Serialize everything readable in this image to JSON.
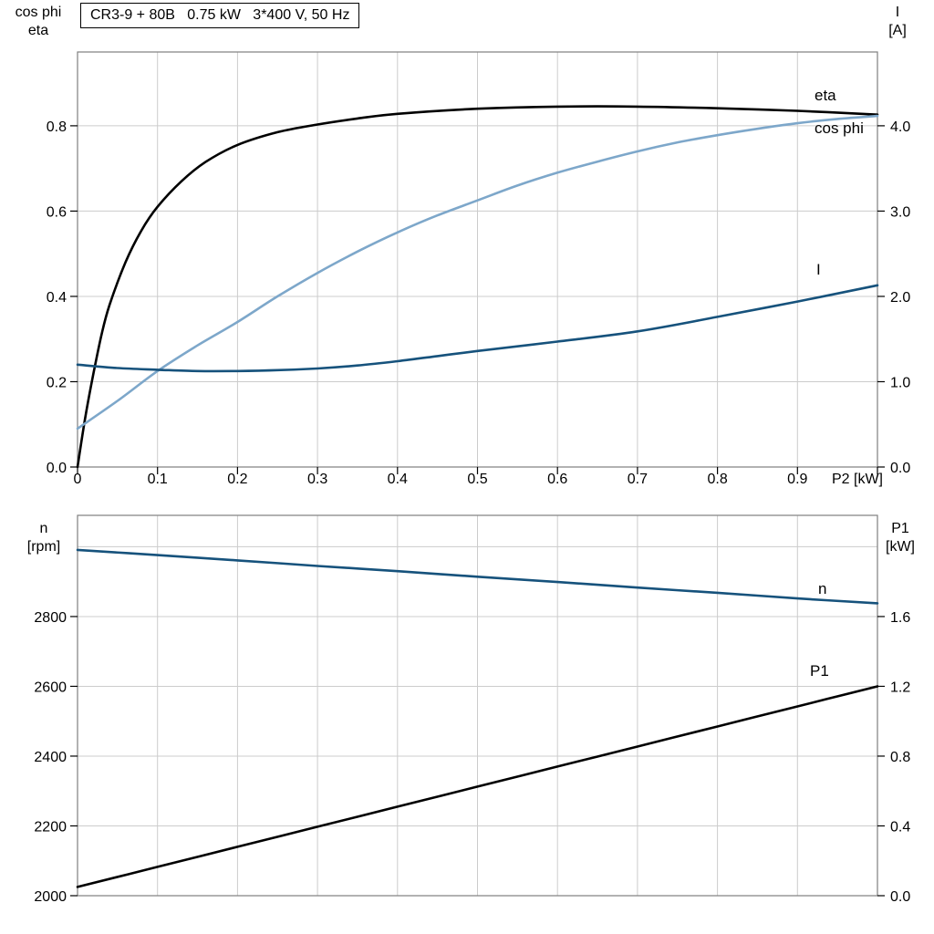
{
  "axes_labels": {
    "top_left_line1": "cos phi",
    "top_left_line2": "eta",
    "top_right_line1": "I",
    "top_right_line2": "[A]",
    "bottom_left_line1": "n",
    "bottom_left_line2": "[rpm]",
    "bottom_right_line1": "P1",
    "bottom_right_line2": "[kW]"
  },
  "colors": {
    "black_curve": "#000000",
    "light_blue_curve": "#7da7ca",
    "dark_blue_curve": "#16527c",
    "grid": "#cccccc",
    "frame": "#7f7f7f",
    "tick": "#000000"
  },
  "chart_data": [
    {
      "type": "line",
      "title": "CR3-9 + 80B   0.75 kW   3*400 V, 50 Hz",
      "xlabel": "P2 [kW]",
      "xlim": [
        0,
        1.0
      ],
      "x_tick_values": [
        0,
        0.1,
        0.2,
        0.3,
        0.4,
        0.5,
        0.6,
        0.7,
        0.8,
        0.9
      ],
      "x_tick_labels": [
        "0",
        "0.1",
        "0.2",
        "0.3",
        "0.4",
        "0.5",
        "0.6",
        "0.7",
        "0.8",
        "0.9"
      ],
      "left_axis": {
        "label": "cos phi / eta",
        "lim": [
          0,
          0.973
        ],
        "tick_values": [
          0,
          0.2,
          0.4,
          0.6,
          0.8
        ],
        "tick_labels": [
          "0.0",
          "0.2",
          "0.4",
          "0.6",
          "0.8"
        ]
      },
      "right_axis": {
        "label": "I [A]",
        "lim": [
          0,
          4.865
        ],
        "tick_values": [
          0,
          1.0,
          2.0,
          3.0,
          4.0
        ],
        "tick_labels": [
          "0.0",
          "1.0",
          "2.0",
          "3.0",
          "4.0"
        ]
      },
      "series": [
        {
          "name": "eta",
          "axis": "left",
          "color_key": "black_curve",
          "x": [
            0,
            0.01,
            0.02,
            0.03,
            0.04,
            0.06,
            0.08,
            0.1,
            0.13,
            0.16,
            0.2,
            0.25,
            0.3,
            0.35,
            0.4,
            0.5,
            0.6,
            0.7,
            0.8,
            0.9,
            1.0
          ],
          "y": [
            0,
            0.12,
            0.22,
            0.31,
            0.38,
            0.48,
            0.555,
            0.61,
            0.67,
            0.715,
            0.755,
            0.785,
            0.803,
            0.817,
            0.828,
            0.84,
            0.845,
            0.845,
            0.841,
            0.835,
            0.826
          ]
        },
        {
          "name": "cos phi",
          "axis": "left",
          "color_key": "light_blue_curve",
          "x": [
            0,
            0.05,
            0.1,
            0.15,
            0.2,
            0.25,
            0.3,
            0.35,
            0.4,
            0.45,
            0.5,
            0.55,
            0.6,
            0.65,
            0.7,
            0.75,
            0.8,
            0.85,
            0.9,
            0.95,
            1.0
          ],
          "y": [
            0.09,
            0.155,
            0.225,
            0.285,
            0.34,
            0.4,
            0.455,
            0.505,
            0.55,
            0.59,
            0.625,
            0.66,
            0.69,
            0.716,
            0.74,
            0.761,
            0.778,
            0.793,
            0.806,
            0.816,
            0.823
          ]
        },
        {
          "name": "I",
          "axis": "right",
          "color_key": "dark_blue_curve",
          "x": [
            0,
            0.05,
            0.1,
            0.15,
            0.2,
            0.25,
            0.3,
            0.35,
            0.4,
            0.45,
            0.5,
            0.6,
            0.7,
            0.8,
            0.9,
            1.0
          ],
          "y": [
            1.2,
            1.16,
            1.14,
            1.125,
            1.125,
            1.135,
            1.155,
            1.19,
            1.24,
            1.3,
            1.36,
            1.47,
            1.59,
            1.76,
            1.94,
            2.13
          ]
        }
      ]
    },
    {
      "type": "line",
      "title": "",
      "xlabel": "",
      "xlim": [
        0,
        1.0
      ],
      "x_tick_values": [
        0,
        0.1,
        0.2,
        0.3,
        0.4,
        0.5,
        0.6,
        0.7,
        0.8,
        0.9
      ],
      "x_tick_labels": [],
      "left_axis": {
        "label": "n [rpm]",
        "lim": [
          2000,
          3090
        ],
        "tick_values": [
          2000,
          2200,
          2400,
          2600,
          2800
        ],
        "tick_labels": [
          "2000",
          "2200",
          "2400",
          "2600",
          "2800"
        ],
        "grid_extra": [
          3000
        ]
      },
      "right_axis": {
        "label": "P1 [kW]",
        "lim": [
          0,
          2.18
        ],
        "tick_values": [
          0,
          0.4,
          0.8,
          1.2,
          1.6
        ],
        "tick_labels": [
          "0.0",
          "0.4",
          "0.8",
          "1.2",
          "1.6"
        ]
      },
      "series": [
        {
          "name": "n",
          "axis": "left",
          "color_key": "dark_blue_curve",
          "x": [
            0,
            0.1,
            0.2,
            0.3,
            0.4,
            0.5,
            0.6,
            0.7,
            0.8,
            0.9,
            1.0
          ],
          "y": [
            2991,
            2976,
            2961,
            2945,
            2930,
            2914,
            2899,
            2883,
            2868,
            2852,
            2838
          ]
        },
        {
          "name": "P1",
          "axis": "right",
          "color_key": "black_curve",
          "x": [
            0,
            0.1,
            0.2,
            0.3,
            0.4,
            0.5,
            0.6,
            0.7,
            0.8,
            0.9,
            1.0
          ],
          "y": [
            0.05,
            0.165,
            0.28,
            0.395,
            0.51,
            0.625,
            0.74,
            0.855,
            0.97,
            1.085,
            1.2
          ]
        }
      ]
    }
  ]
}
